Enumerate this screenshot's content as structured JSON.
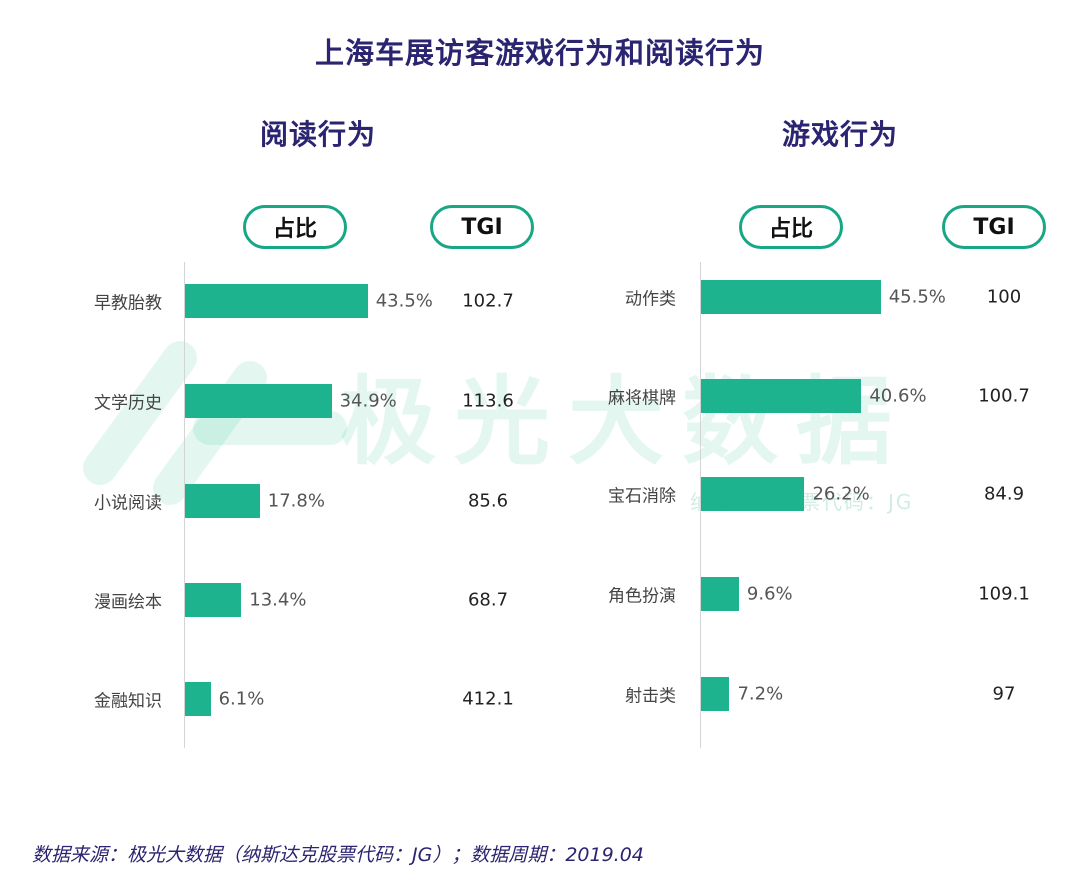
{
  "title": "上海车展访客游戏行为和阅读行为",
  "watermark": {
    "brand": "极光大数据",
    "stock": "纳斯达克股票代码：JG"
  },
  "headers": {
    "share": "占比",
    "tgi": "TGI"
  },
  "chart_data": [
    {
      "type": "bar",
      "orientation": "horizontal",
      "title": "阅读行为",
      "categories": [
        "早教胎教",
        "文学历史",
        "小说阅读",
        "漫画绘本",
        "金融知识"
      ],
      "values": [
        43.5,
        34.9,
        17.8,
        13.4,
        6.1
      ],
      "value_labels": [
        "43.5%",
        "34.9%",
        "17.8%",
        "13.4%",
        "6.1%"
      ],
      "tgi": [
        "102.7",
        "113.6",
        "85.6",
        "68.7",
        "412.1"
      ],
      "xlim": [
        0,
        50
      ],
      "color": "#1db38e"
    },
    {
      "type": "bar",
      "orientation": "horizontal",
      "title": "游戏行为",
      "categories": [
        "动作类",
        "麻将棋牌",
        "宝石消除",
        "角色扮演",
        "射击类"
      ],
      "values": [
        45.5,
        40.6,
        26.2,
        9.6,
        7.2
      ],
      "value_labels": [
        "45.5%",
        "40.6%",
        "26.2%",
        "9.6%",
        "7.2%"
      ],
      "tgi": [
        "100",
        "100.7",
        "84.9",
        "109.1",
        "97"
      ],
      "xlim": [
        0,
        50
      ],
      "color": "#1db38e"
    }
  ],
  "source": "数据来源：极光大数据（纳斯达克股票代码：JG）；数据周期：2019.04"
}
